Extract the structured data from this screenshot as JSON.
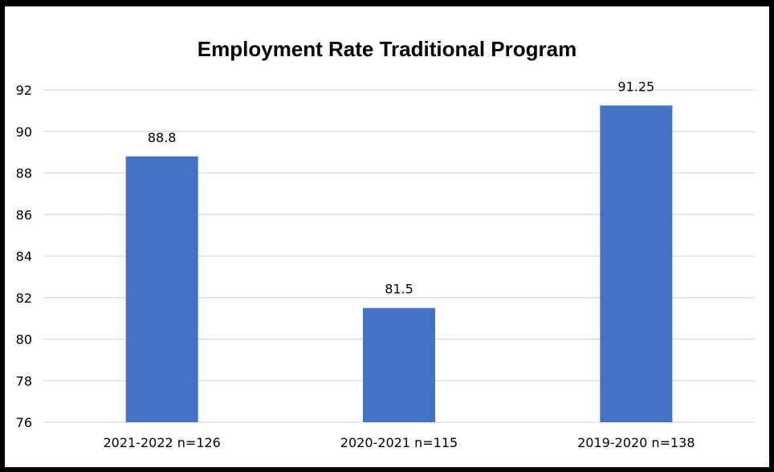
{
  "chart_data": {
    "type": "bar",
    "title": "Employment Rate Traditional Program",
    "categories": [
      "2021-2022 n=126",
      "2020-2021 n=115",
      "2019-2020 n=138"
    ],
    "values": [
      88.8,
      81.5,
      91.25
    ],
    "data_labels": [
      "88.8",
      "81.5",
      "91.25"
    ],
    "ylim": [
      76,
      92
    ],
    "yticks": [
      76,
      78,
      80,
      82,
      84,
      86,
      88,
      90,
      92
    ],
    "xlabel": "",
    "ylabel": "",
    "grid": true,
    "legend": "none",
    "bar_color": "#4472C4",
    "grid_color": "#D9D9D9"
  }
}
